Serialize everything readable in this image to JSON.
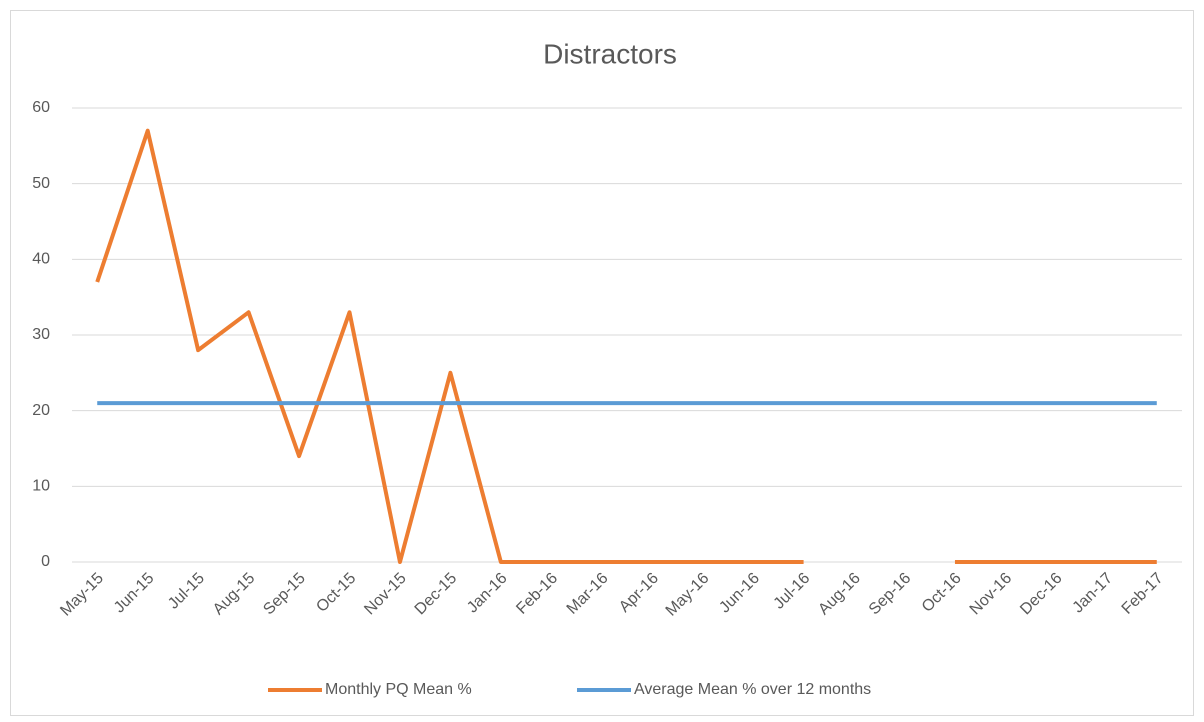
{
  "chart_data": {
    "type": "line",
    "title": "Distractors",
    "categories": [
      "May-15",
      "Jun-15",
      "Jul-15",
      "Aug-15",
      "Sep-15",
      "Oct-15",
      "Nov-15",
      "Dec-15",
      "Jan-16",
      "Feb-16",
      "Mar-16",
      "Apr-16",
      "May-16",
      "Jun-16",
      "Jul-16",
      "Aug-16",
      "Sep-16",
      "Oct-16",
      "Nov-16",
      "Dec-16",
      "Jan-17",
      "Feb-17"
    ],
    "series": [
      {
        "name": "Monthly PQ Mean %",
        "color": "#ED7D31",
        "values": [
          37,
          57,
          28,
          33,
          14,
          33,
          0,
          25,
          0,
          0,
          0,
          0,
          0,
          0,
          0,
          null,
          null,
          0,
          0,
          0,
          0,
          0
        ]
      },
      {
        "name": "Average Mean % over 12 months",
        "color": "#5B9BD5",
        "values": [
          21,
          21,
          21,
          21,
          21,
          21,
          21,
          21,
          21,
          21,
          21,
          21,
          21,
          21,
          21,
          21,
          21,
          21,
          21,
          21,
          21,
          21
        ]
      }
    ],
    "ylim": [
      0,
      60
    ],
    "yticks": [
      0,
      10,
      20,
      30,
      40,
      50,
      60
    ],
    "grid": true,
    "legend": "bottom"
  }
}
